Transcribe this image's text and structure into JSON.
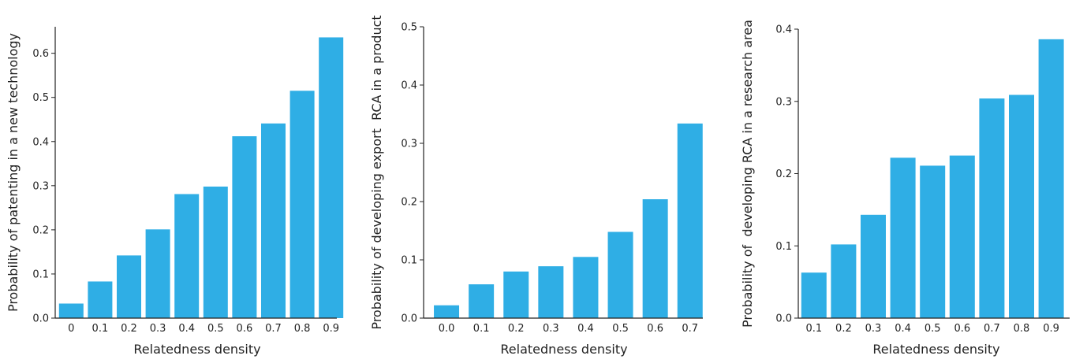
{
  "chart_data": [
    {
      "type": "bar",
      "categories": [
        "0",
        "0.1",
        "0.2",
        "0.3",
        "0.4",
        "0.5",
        "0.6",
        "0.7",
        "0.8",
        "0.9"
      ],
      "values": [
        0.033,
        0.083,
        0.142,
        0.201,
        0.281,
        0.298,
        0.412,
        0.441,
        0.515,
        0.636
      ],
      "title": "",
      "xlabel": "Relatedness density",
      "ylabel": "Probability of patenting in a new technology",
      "ylim": [
        0,
        0.66
      ],
      "yticks": [
        0.0,
        0.1,
        0.2,
        0.3,
        0.4,
        0.5,
        0.6
      ],
      "ytick_labels": [
        "0.0",
        "0.1",
        "0.2",
        "0.3",
        "0.4",
        "0.5",
        "0.6"
      ],
      "grid": false,
      "bar_color": "#2FAEE5"
    },
    {
      "type": "bar",
      "categories": [
        "0.0",
        "0.1",
        "0.2",
        "0.3",
        "0.4",
        "0.5",
        "0.6",
        "0.7"
      ],
      "values": [
        0.022,
        0.058,
        0.08,
        0.089,
        0.105,
        0.148,
        0.204,
        0.334
      ],
      "title": "",
      "xlabel": "Relatedness density",
      "ylabel": "Probability of developing export  RCA in a product",
      "ylim": [
        0,
        0.5
      ],
      "yticks": [
        0.0,
        0.1,
        0.2,
        0.3,
        0.4,
        0.5
      ],
      "ytick_labels": [
        "0.0",
        "0.1",
        "0.2",
        "0.3",
        "0.4",
        "0.5"
      ],
      "grid": false,
      "bar_color": "#2FAEE5"
    },
    {
      "type": "bar",
      "categories": [
        "0.1",
        "0.2",
        "0.3",
        "0.4",
        "0.5",
        "0.6",
        "0.7",
        "0.8",
        "0.9"
      ],
      "values": [
        0.063,
        0.102,
        0.143,
        0.222,
        0.211,
        0.225,
        0.304,
        0.309,
        0.386
      ],
      "title": "",
      "xlabel": "Relatedness density",
      "ylabel": "Probability of  developing RCA in a research area",
      "ylim": [
        0,
        0.4
      ],
      "yticks": [
        0.0,
        0.1,
        0.2,
        0.3,
        0.4
      ],
      "ytick_labels": [
        "0.0",
        "0.1",
        "0.2",
        "0.3",
        "0.4"
      ],
      "grid": false,
      "bar_color": "#2FAEE5"
    }
  ]
}
